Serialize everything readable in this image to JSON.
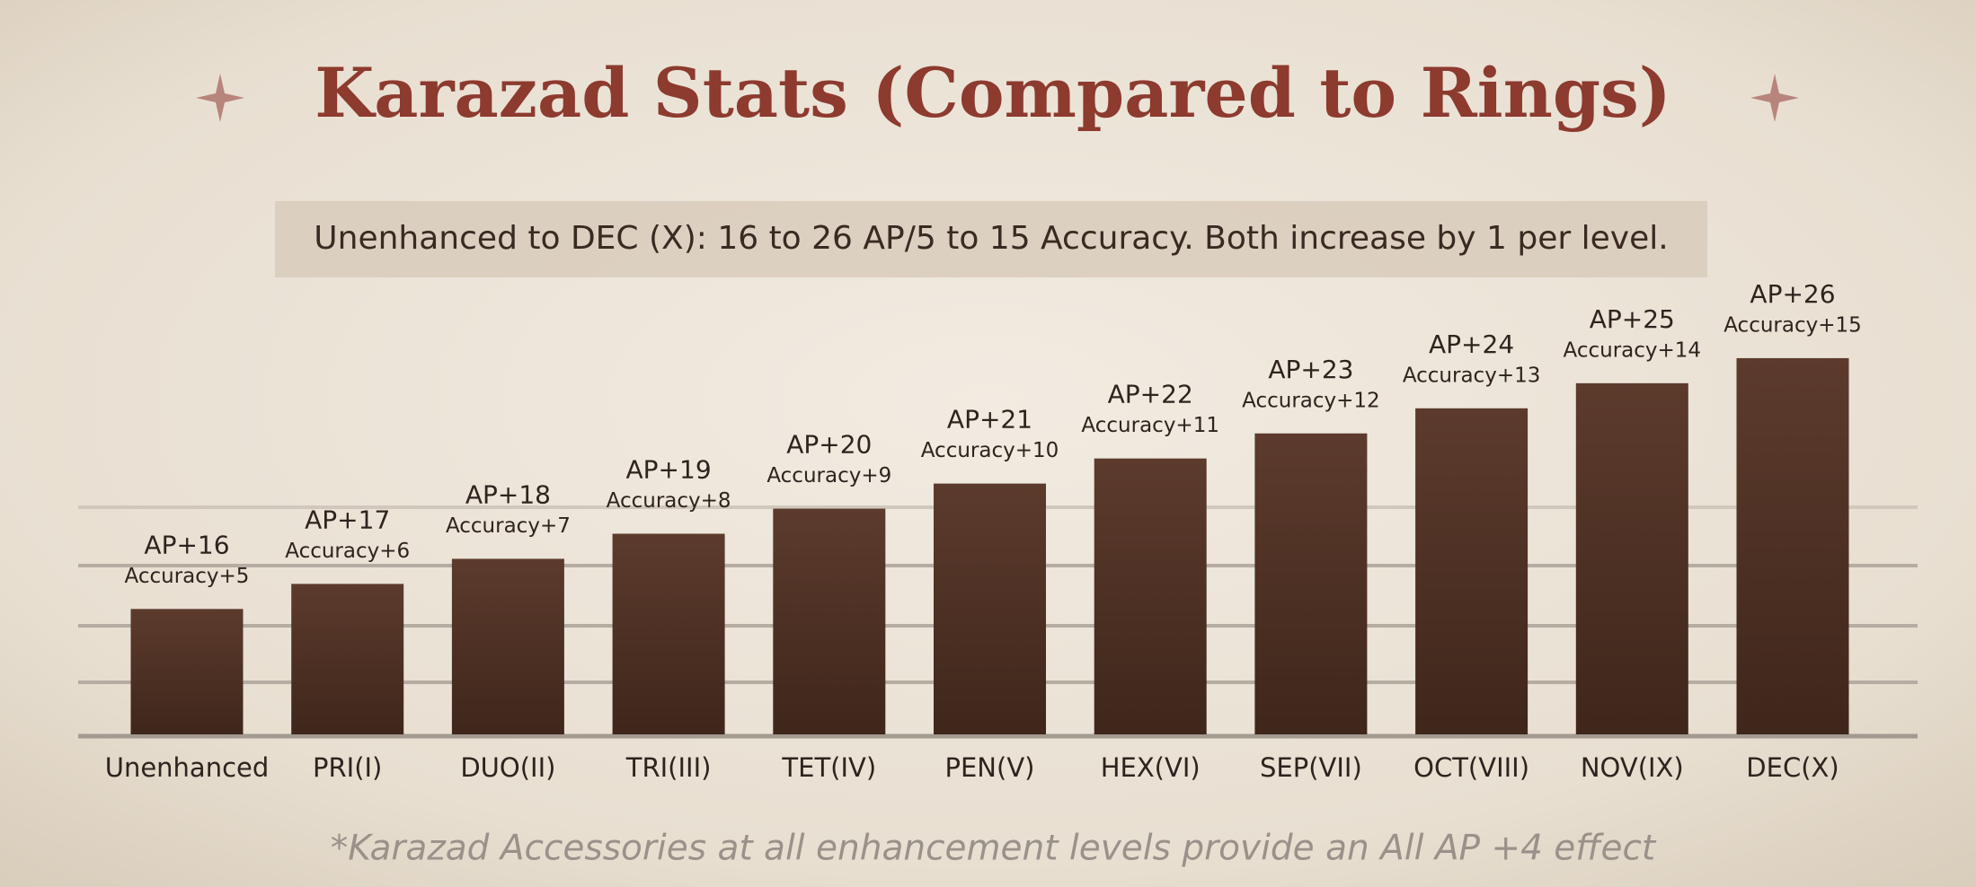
{
  "chart_data": {
    "type": "bar",
    "title": "Karazad Stats (Compared to Rings)",
    "subtitle": "Unenhanced to DEC (X): 16 to 26 AP/5 to 15 Accuracy. Both increase by 1 per level.",
    "footnote": "*Karazad Accessories at all enhancement levels provide an All AP +4 effect",
    "categories": [
      "Unenhanced",
      "PRI(I)",
      "DUO(II)",
      "TRI(III)",
      "TET(IV)",
      "PEN(V)",
      "HEX(VI)",
      "SEP(VII)",
      "OCT(VIII)",
      "NOV(IX)",
      "DEC(X)"
    ],
    "values": [
      16,
      17,
      18,
      19,
      20,
      21,
      22,
      23,
      24,
      25,
      26
    ],
    "value_labels": [
      "AP+16",
      "AP+17",
      "AP+18",
      "AP+19",
      "AP+20",
      "AP+21",
      "AP+22",
      "AP+23",
      "AP+24",
      "AP+25",
      "AP+26"
    ],
    "accuracy_values": [
      5,
      6,
      7,
      8,
      9,
      10,
      11,
      12,
      13,
      14,
      15
    ],
    "accuracy_labels": [
      "Accuracy+5",
      "Accuracy+6",
      "Accuracy+7",
      "Accuracy+8",
      "Accuracy+9",
      "Accuracy+10",
      "Accuracy+11",
      "Accuracy+12",
      "Accuracy+13",
      "Accuracy+14",
      "Accuracy+15"
    ],
    "color": "#4e3024",
    "ylim": [
      11,
      27
    ]
  }
}
